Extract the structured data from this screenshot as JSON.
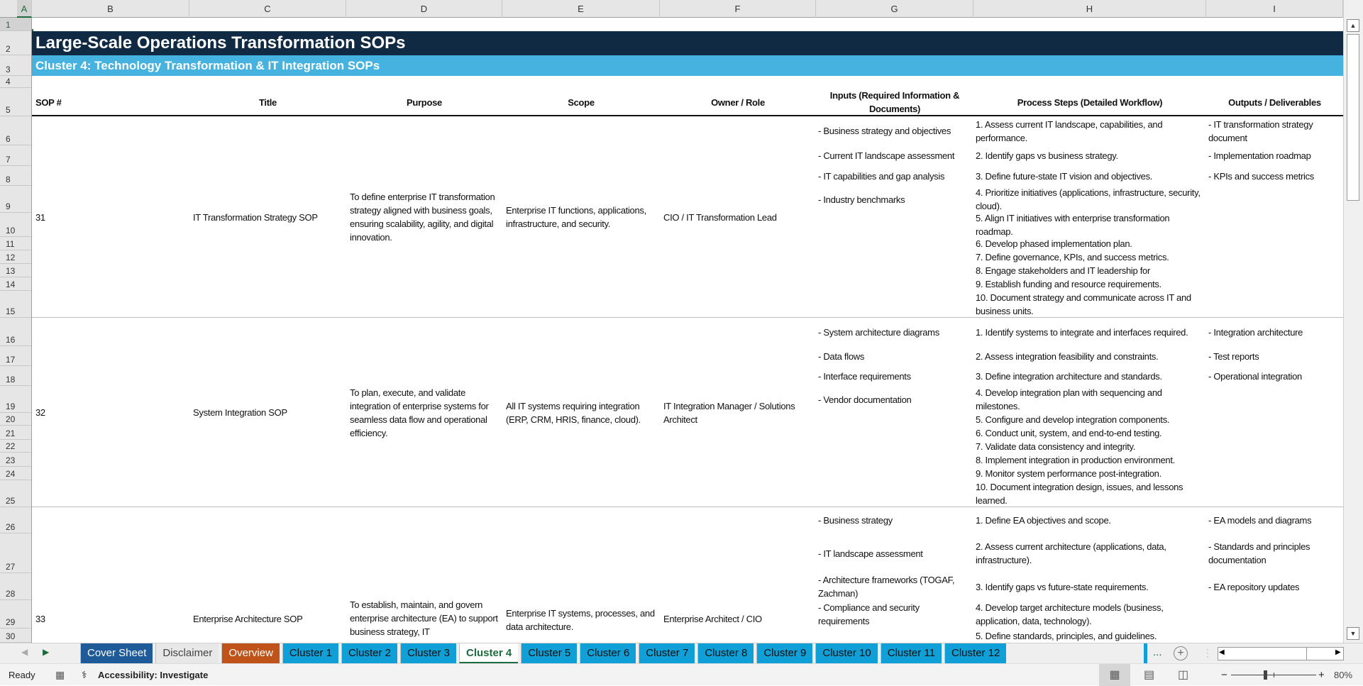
{
  "columns": [
    "A",
    "B",
    "C",
    "D",
    "E",
    "F",
    "G",
    "H",
    "I"
  ],
  "row_numbers": [
    "1",
    "2",
    "3",
    "4",
    "5",
    "6",
    "7",
    "8",
    "9",
    "10",
    "11",
    "12",
    "13",
    "14",
    "15",
    "16",
    "17",
    "18",
    "19",
    "20",
    "21",
    "22",
    "23",
    "24",
    "25",
    "26",
    "27",
    "28",
    "29",
    "30"
  ],
  "title": "Large-Scale Operations Transformation SOPs",
  "subtitle": "Cluster 4: Technology Transformation & IT Integration SOPs",
  "headers": [
    "SOP #",
    "Title",
    "Purpose",
    "Scope",
    "Owner / Role",
    "Inputs (Required Information & Documents)",
    "Process Steps (Detailed Workflow)",
    "Outputs / Deliverables"
  ],
  "sops": [
    {
      "num": "31",
      "title": "IT Transformation Strategy SOP",
      "purpose": "To define enterprise IT transformation strategy aligned with business goals, ensuring scalability, agility, and digital innovation.",
      "scope": "Enterprise IT functions, applications, infrastructure, and security.",
      "owner": "CIO / IT Transformation Lead",
      "inputs": [
        "- Business strategy and objectives",
        "- Current IT landscape assessment",
        "- IT capabilities and gap analysis",
        "- Industry benchmarks"
      ],
      "steps": [
        "1. Assess current IT landscape, capabilities, and performance.",
        "2. Identify gaps vs business strategy.",
        "3. Define future-state IT vision and objectives.",
        "4. Prioritize initiatives (applications, infrastructure, security, cloud).",
        "5. Align IT initiatives with enterprise transformation roadmap.",
        "6. Develop phased implementation plan.",
        "7. Define governance, KPIs, and success metrics.",
        "8. Engage stakeholders and IT leadership for",
        "9. Establish funding and resource requirements.",
        "10. Document strategy and communicate across IT and business units."
      ],
      "outputs": [
        "- IT transformation strategy document",
        "- Implementation roadmap",
        "- KPIs and success metrics"
      ]
    },
    {
      "num": "32",
      "title": "System Integration SOP",
      "purpose": "To plan, execute, and validate integration of enterprise systems for seamless data flow and operational efficiency.",
      "scope": "All IT systems requiring integration (ERP, CRM, HRIS, finance, cloud).",
      "owner": "IT Integration Manager / Solutions Architect",
      "inputs": [
        "- System architecture diagrams",
        "- Data flows",
        "- Interface requirements",
        "- Vendor documentation"
      ],
      "steps": [
        "1. Identify systems to integrate and interfaces required.",
        "2. Assess integration feasibility and constraints.",
        "3. Define integration architecture and standards.",
        "4. Develop integration plan with sequencing and milestones.",
        "5. Configure and develop integration components.",
        "6. Conduct unit, system, and end-to-end testing.",
        "7. Validate data consistency and integrity.",
        "8. Implement integration in production environment.",
        "9. Monitor system performance post-integration.",
        "10. Document integration design, issues, and lessons learned."
      ],
      "outputs": [
        "- Integration architecture",
        "- Test reports",
        "- Operational integration"
      ]
    },
    {
      "num": "33",
      "title": "Enterprise Architecture SOP",
      "purpose": "To establish, maintain, and govern enterprise architecture (EA) to support business strategy, IT",
      "scope": "Enterprise IT systems, processes, and data architecture.",
      "owner": "Enterprise Architect / CIO",
      "inputs": [
        "- Business strategy",
        "- IT landscape assessment",
        "- Architecture frameworks (TOGAF, Zachman)",
        "- Compliance and security requirements"
      ],
      "steps": [
        "1. Define EA objectives and scope.",
        "2. Assess current architecture (applications, data, infrastructure).",
        "3. Identify gaps vs future-state requirements.",
        "4. Develop target architecture models (business, application, data, technology).",
        "5. Define standards, principles, and guidelines."
      ],
      "outputs": [
        "- EA models and diagrams",
        "- Standards and principles documentation",
        "- EA repository updates"
      ]
    }
  ],
  "tabs": [
    {
      "label": "Cover Sheet",
      "color": "#1f5b99",
      "text": "#ffffff"
    },
    {
      "label": "Disclaimer",
      "color": "#e8e8e8",
      "text": "#444444"
    },
    {
      "label": "Overview",
      "color": "#c0531a",
      "text": "#ffffff"
    },
    {
      "label": "Cluster 1",
      "color": "#109fd6"
    },
    {
      "label": "Cluster 2",
      "color": "#109fd6"
    },
    {
      "label": "Cluster 3",
      "color": "#109fd6"
    },
    {
      "label": "Cluster 4",
      "active": true
    },
    {
      "label": "Cluster 5",
      "color": "#109fd6"
    },
    {
      "label": "Cluster 6",
      "color": "#109fd6"
    },
    {
      "label": "Cluster 7",
      "color": "#109fd6"
    },
    {
      "label": "Cluster 8",
      "color": "#109fd6"
    },
    {
      "label": "Cluster 9",
      "color": "#109fd6"
    },
    {
      "label": "Cluster 10",
      "color": "#109fd6"
    },
    {
      "label": "Cluster 11",
      "color": "#109fd6"
    },
    {
      "label": "Cluster 12",
      "color": "#109fd6"
    }
  ],
  "tabs_more": "...",
  "status": {
    "ready": "Ready",
    "accessibility": "Accessibility: Investigate",
    "zoom": "80%",
    "zoom_level_percent": 80
  },
  "colors": {
    "title_bg": "#102a43",
    "subtitle_bg": "#46b2e0",
    "cluster_tab": "#109fd6",
    "active_tab_text": "#1e6b3f"
  }
}
